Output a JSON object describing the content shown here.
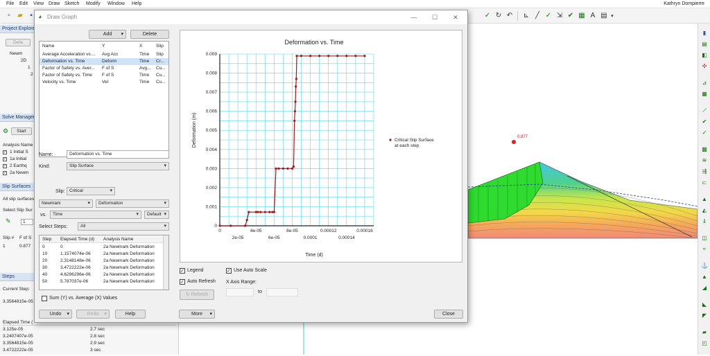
{
  "menubar": {
    "items": [
      "File",
      "Edit",
      "View",
      "Draw",
      "Sketch",
      "Modify",
      "Window",
      "Help"
    ],
    "user": "Kathryn Dompierre"
  },
  "left": {
    "project_explorer": {
      "title": "Project Explorer",
      "defaults_btn": "Defa",
      "tree": [
        "Newm",
        "2D",
        "1",
        "2"
      ]
    },
    "solve_manager": {
      "title": "Solve Manager",
      "start_btn": "Start",
      "header": "Analysis Name",
      "rows": [
        "1 Initial S",
        "1a Initial",
        "2 Earthq",
        "2a Newm"
      ]
    },
    "slip_surfaces": {
      "title": "Slip Surfaces",
      "all_text": "All slip surfaces",
      "select_label": "Select Slip Sur",
      "select_value": "1",
      "col_slip": "Slip #",
      "col_fos": "F of S",
      "row_slip": "1",
      "row_fos": "0.877"
    },
    "steps": {
      "title": "Steps",
      "current_label": "Current Step:",
      "current_value": "3.3564815e-05",
      "col_elapsed": "Elapsed Time (",
      "rows": [
        [
          "3.125e-05",
          "2.7 sec"
        ],
        [
          "3.2407407e-05",
          "2.8 sec"
        ],
        [
          "3.3564815e-05",
          "2.9 sec"
        ],
        [
          "3.4722222e-05",
          "3 sec"
        ]
      ]
    }
  },
  "dialog": {
    "title": "Draw Graph",
    "add_btn": "Add",
    "delete_btn": "Delete",
    "graph_list": {
      "headers": [
        "Name",
        "Y",
        "X",
        "Slip"
      ],
      "rows": [
        [
          "Average Acceleration vs....",
          "Avg Acc",
          "Time",
          "Slip"
        ],
        [
          "Deformation vs. Time",
          "Deform",
          "Time",
          "Cr..."
        ],
        [
          "Factor of Safety vs. Aver...",
          "F of S",
          "Avg...",
          "Cu..."
        ],
        [
          "Factor of Safety vs. Time",
          "F of S",
          "Time",
          "Cu..."
        ],
        [
          "Velocity vs. Time",
          "Vel",
          "Time",
          "Cu..."
        ]
      ]
    },
    "name_label": "Name:",
    "name_value": "Deformation vs. Time",
    "kind_label": "Kind:",
    "kind_value": "Slip Surface",
    "slip_label": "Slip:",
    "slip_value": "Critical",
    "y_analysis": "Newmark",
    "y_param": "Deformation",
    "vs_label": "vs.",
    "x_param": "Time",
    "x_default": "Default",
    "select_steps_label": "Select Steps:",
    "select_steps_value": "All",
    "steps_table": {
      "headers": [
        "Step",
        "Elapsed Time (d)",
        "Analysis Name"
      ],
      "rows": [
        [
          "0",
          "0",
          "2a Newmark Deformation"
        ],
        [
          "10",
          "1.1574074e-06",
          "2a Newmark Deformation"
        ],
        [
          "20",
          "2.3148148e-06",
          "2a Newmark Deformation"
        ],
        [
          "30",
          "3.4722222e-06",
          "2a Newmark Deformation"
        ],
        [
          "40",
          "4.6296296e-06",
          "2a Newmark Deformation"
        ],
        [
          "50",
          "5.787037e-06",
          "2a Newmark Deformation"
        ]
      ]
    },
    "sum_checkbox": "Sum (Y) vs. Average (X) Values",
    "legend_label": "Legend",
    "auto_refresh_label": "Auto Refresh",
    "auto_scale_label": "Use Auto Scale",
    "x_axis_range_label": "X Axis Range:",
    "to_label": "to",
    "refresh_btn": "Refresh",
    "undo_btn": "Undo",
    "redo_btn": "Redo",
    "help_btn": "Help",
    "more_btn": "More",
    "close_btn": "Close"
  },
  "canvas": {
    "fos_label": "0.877"
  },
  "chart_data": {
    "type": "line",
    "title": "Deformation vs. Time",
    "xlabel": "Time (d)",
    "ylabel": "Deformation (m)",
    "xlim": [
      0,
      0.00017
    ],
    "ylim": [
      0,
      0.009
    ],
    "x_ticks": [
      2e-05,
      4e-05,
      6e-05,
      8e-05,
      0.0001,
      0.00012,
      0.00014,
      0.00016
    ],
    "x_tick_labels": [
      [
        "",
        "2e-05"
      ],
      [
        "4e-05",
        ""
      ],
      [
        "",
        "6e-05"
      ],
      [
        "8e-05",
        ""
      ],
      [
        "",
        "0.0001"
      ],
      [
        "0.00012",
        ""
      ],
      [
        "",
        "0.00014"
      ],
      [
        "0.00016",
        ""
      ]
    ],
    "y_ticks": [
      0,
      0.001,
      0.002,
      0.003,
      0.004,
      0.005,
      0.006,
      0.007,
      0.008,
      0.009
    ],
    "y_tick_labels": [
      "0",
      "0.001",
      "0.002",
      "0.003",
      "0.004",
      "0.005",
      "0.006",
      "0.007",
      "0.008",
      "0.009"
    ],
    "x_origin_label": "0",
    "grid": true,
    "legend": "right",
    "series": [
      {
        "name": "Critical Slip Surface at each step",
        "color": "#a01818",
        "x": [
          0,
          1.2e-05,
          2.8e-05,
          3e-05,
          3.2e-05,
          4e-05,
          4.2e-05,
          4.5e-05,
          5e-05,
          5.5e-05,
          5.8e-05,
          6e-05,
          6.2e-05,
          6.5e-05,
          7e-05,
          7.5e-05,
          8e-05,
          8.15e-05,
          8.25e-05,
          8.3e-05,
          8.35e-05,
          8.4e-05,
          8.45e-05,
          8.5e-05,
          9e-05,
          0.0001,
          0.00011,
          0.00012,
          0.00013,
          0.00014,
          0.00015,
          0.00016
        ],
        "y": [
          0,
          0,
          0,
          0.0003,
          0.00072,
          0.00072,
          0.00072,
          0.00072,
          0.00072,
          0.00072,
          0.00072,
          0.00072,
          0.003,
          0.003,
          0.003,
          0.003,
          0.003,
          0.0031,
          0.0055,
          0.006,
          0.0065,
          0.0073,
          0.0077,
          0.0089,
          0.0089,
          0.0089,
          0.0089,
          0.0089,
          0.0089,
          0.0089,
          0.0089,
          0.0089
        ]
      }
    ]
  }
}
